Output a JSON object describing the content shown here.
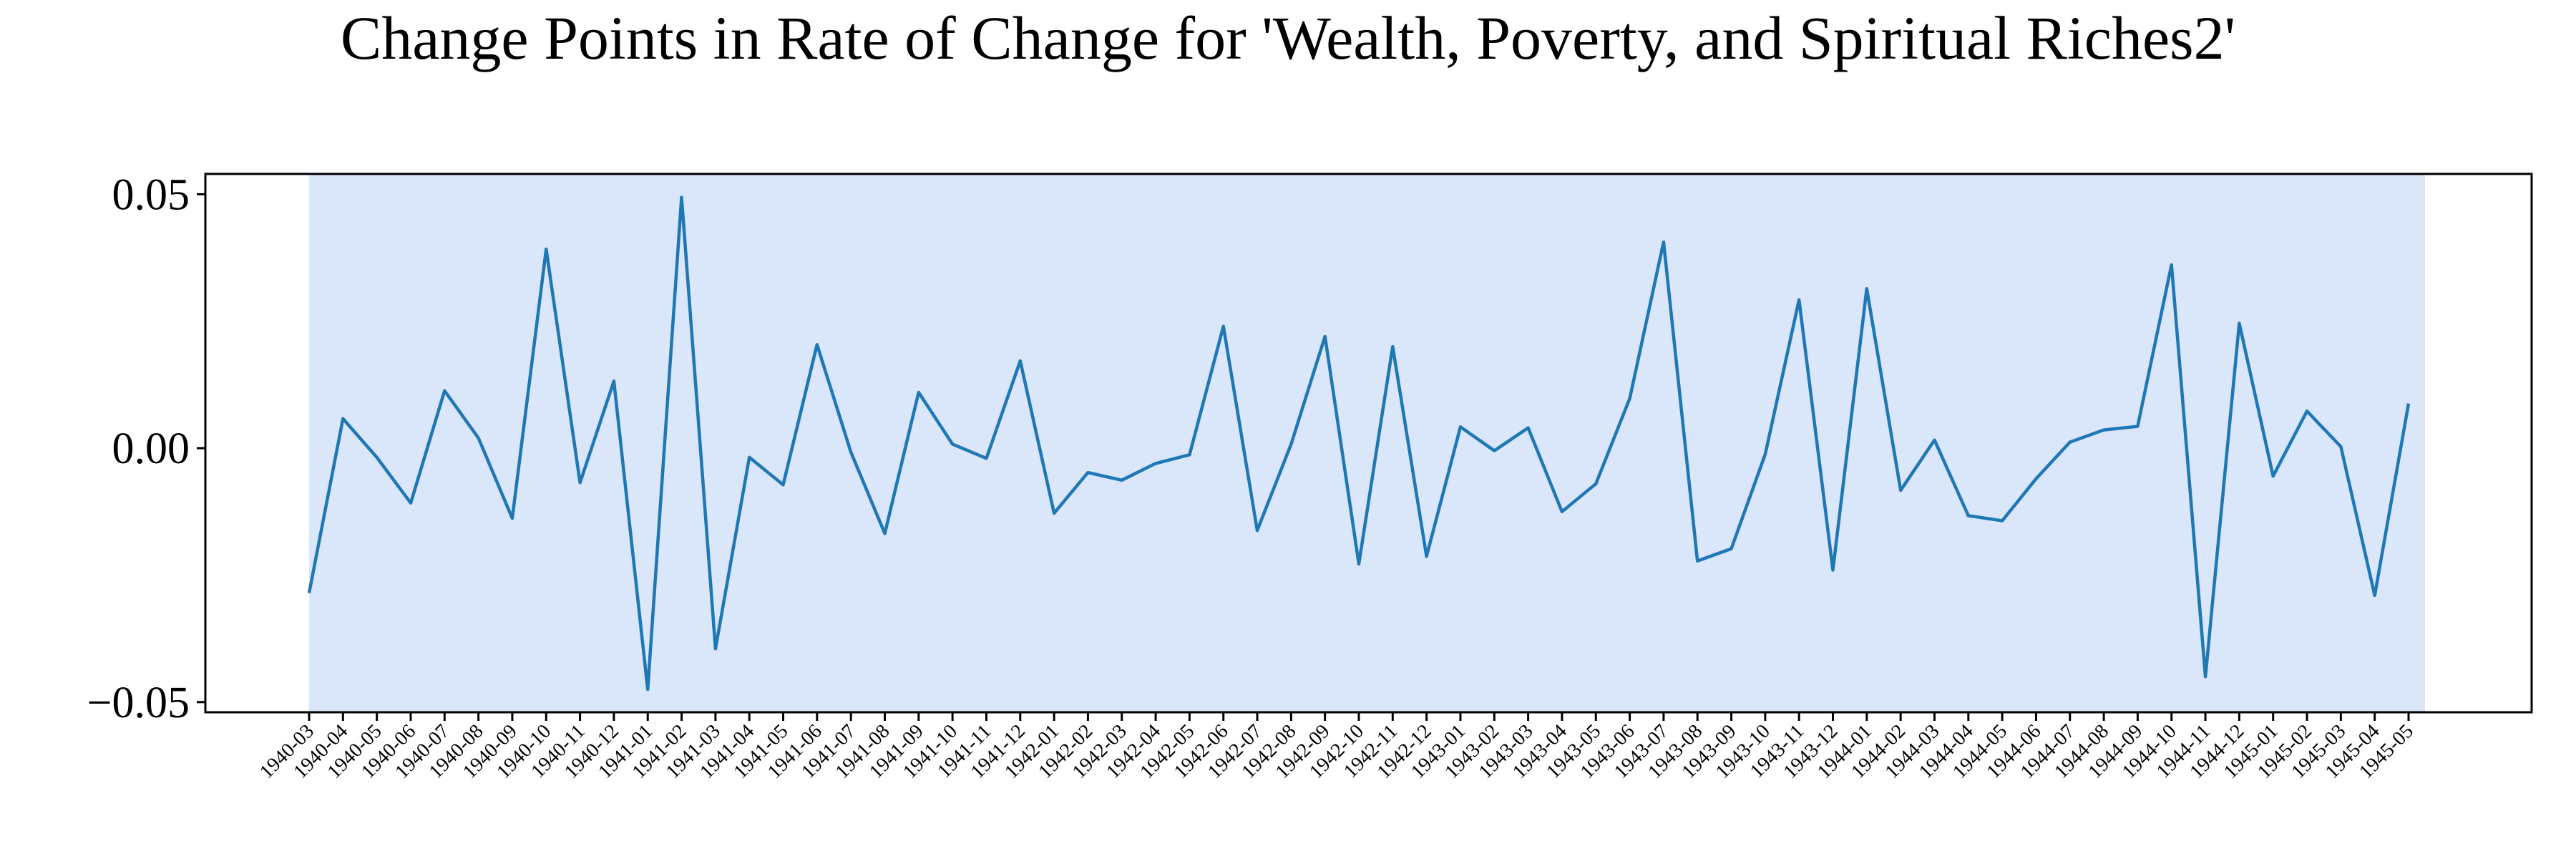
{
  "chart_data": {
    "type": "line",
    "title": "Change Points in Rate of Change for 'Wealth, Poverty, and Spiritual Riches2'",
    "xlabel": "",
    "ylabel": "",
    "ylim": [
      -0.052,
      0.054
    ],
    "yticks": [
      -0.05,
      0.0,
      0.05
    ],
    "ytick_labels": [
      "−0.05",
      "0.00",
      "0.05"
    ],
    "grid": false,
    "legend": "none",
    "line_color": "#1f77b4",
    "shaded_region_color": "#dae6fa",
    "shaded_region": {
      "start": "1940-03",
      "end": "1945-05"
    },
    "x": [
      "1940-03",
      "1940-04",
      "1940-05",
      "1940-06",
      "1940-07",
      "1940-08",
      "1940-09",
      "1940-10",
      "1940-11",
      "1940-12",
      "1941-01",
      "1941-02",
      "1941-03",
      "1941-04",
      "1941-05",
      "1941-06",
      "1941-07",
      "1941-08",
      "1941-09",
      "1941-10",
      "1941-11",
      "1941-12",
      "1942-01",
      "1942-02",
      "1942-03",
      "1942-04",
      "1942-05",
      "1942-06",
      "1942-07",
      "1942-08",
      "1942-09",
      "1942-10",
      "1942-11",
      "1942-12",
      "1943-01",
      "1943-02",
      "1943-03",
      "1943-04",
      "1943-05",
      "1943-06",
      "1943-07",
      "1943-08",
      "1943-09",
      "1943-10",
      "1943-11",
      "1943-12",
      "1944-01",
      "1944-02",
      "1944-03",
      "1944-04",
      "1944-05",
      "1944-06",
      "1944-07",
      "1944-08",
      "1944-09",
      "1944-10",
      "1944-11",
      "1944-12",
      "1945-01",
      "1945-02",
      "1945-03",
      "1945-04",
      "1945-05"
    ],
    "series": [
      {
        "values": [
          -0.0285,
          0.0058,
          -0.0018,
          -0.0108,
          0.0113,
          0.002,
          -0.0138,
          0.0392,
          -0.0068,
          0.0132,
          -0.0475,
          0.0494,
          -0.0395,
          -0.0018,
          -0.0072,
          0.0204,
          -0.0008,
          -0.0168,
          0.011,
          0.0008,
          -0.002,
          0.0172,
          -0.0128,
          -0.0048,
          -0.0063,
          -0.003,
          -0.0013,
          0.024,
          -0.0162,
          0.0008,
          0.022,
          -0.0228,
          0.02,
          -0.0213,
          0.0042,
          -0.0005,
          0.004,
          -0.0125,
          -0.007,
          0.0098,
          0.0406,
          -0.0222,
          -0.0198,
          -0.0012,
          0.0292,
          -0.024,
          0.0314,
          -0.0083,
          0.0016,
          -0.0133,
          -0.0143,
          -0.006,
          0.0012,
          0.0036,
          0.0043,
          0.0361,
          -0.045,
          0.0246,
          -0.0055,
          0.0073,
          0.0003,
          -0.029,
          0.0088
        ]
      }
    ]
  }
}
